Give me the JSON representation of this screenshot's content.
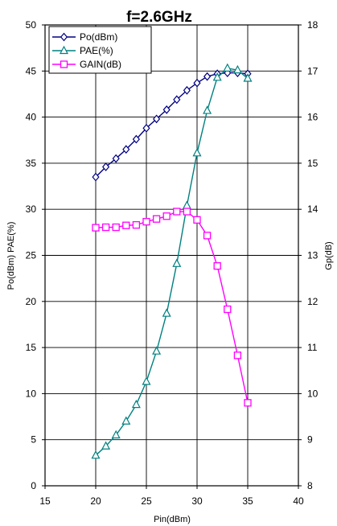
{
  "chart_data": {
    "type": "line",
    "title": "f=2.6GHz",
    "xlabel": "Pin(dBm)",
    "ylabel_left": "Po(dBm) PAE(%)",
    "ylabel_right": "Gp(dB)",
    "xlim": [
      15,
      40
    ],
    "ylim_left": [
      0,
      50
    ],
    "ylim_right": [
      8,
      18
    ],
    "xticks": [
      "15",
      "20",
      "25",
      "30",
      "35",
      "40"
    ],
    "yticks_left": [
      "0",
      "5",
      "10",
      "15",
      "20",
      "25",
      "30",
      "35",
      "40",
      "45",
      "50"
    ],
    "yticks_right": [
      "8",
      "9",
      "10",
      "11",
      "12",
      "13",
      "14",
      "15",
      "16",
      "17",
      "18"
    ],
    "grid": true,
    "legend_position": "top-left",
    "series": [
      {
        "name": "Po(dBm)",
        "axis": "left",
        "marker": "diamond",
        "color": "#000080",
        "x": [
          20,
          21,
          22,
          23,
          24,
          25,
          26,
          27,
          28,
          29,
          30,
          31,
          32,
          33,
          34,
          35
        ],
        "values": [
          33.5,
          34.6,
          35.5,
          36.5,
          37.6,
          38.8,
          39.8,
          40.8,
          41.9,
          42.9,
          43.7,
          44.4,
          44.7,
          44.8,
          44.8,
          44.7
        ]
      },
      {
        "name": "PAE(%)",
        "axis": "left",
        "marker": "triangle",
        "color": "#008080",
        "x": [
          20,
          21,
          22,
          23,
          24,
          25,
          26,
          27,
          28,
          29,
          30,
          31,
          32,
          33,
          34,
          35
        ],
        "values": [
          3.3,
          4.3,
          5.5,
          7.0,
          8.8,
          11.3,
          14.6,
          18.7,
          24.1,
          30.4,
          36.1,
          40.7,
          44.3,
          45.3,
          45.1,
          44.2
        ]
      },
      {
        "name": "GAIN(dB)",
        "axis": "right",
        "marker": "square",
        "color": "#FF00FF",
        "x": [
          20,
          21,
          22,
          23,
          24,
          25,
          26,
          27,
          28,
          29,
          30,
          31,
          32,
          33,
          34,
          35
        ],
        "values": [
          13.6,
          13.61,
          13.61,
          13.65,
          13.66,
          13.73,
          13.79,
          13.85,
          13.95,
          13.95,
          13.77,
          13.43,
          12.77,
          11.83,
          10.83,
          9.8
        ]
      }
    ]
  }
}
